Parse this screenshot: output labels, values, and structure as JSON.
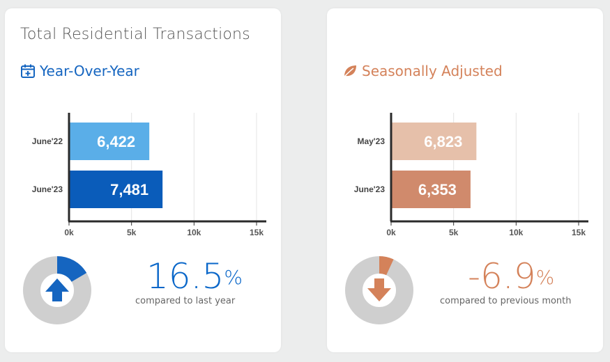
{
  "cards": [
    {
      "title": "Total Residential Transactions",
      "section_label": "Year-Over-Year",
      "section_icon": "calendar-plus-icon",
      "accent": "#1565c0",
      "metric": {
        "number": "16.5",
        "suffix": "%",
        "caption": "compared to last year",
        "direction": "up",
        "fraction": 0.165
      }
    },
    {
      "title": "",
      "section_label": "Seasonally Adjusted",
      "section_icon": "leaf-icon",
      "accent": "#d4825a",
      "metric": {
        "number": "-6.9",
        "suffix": "%",
        "caption": "compared to previous month",
        "direction": "down",
        "fraction": 0.069
      }
    }
  ],
  "chart_data": [
    {
      "type": "bar",
      "orientation": "horizontal",
      "categories": [
        "June'22",
        "June'23"
      ],
      "values": [
        6422,
        7481
      ],
      "value_labels": [
        "6,422",
        "7,481"
      ],
      "bar_colors": [
        "#5aaee8",
        "#0a5cba"
      ],
      "xlim": [
        0,
        15000
      ],
      "xticks": [
        "0k",
        "5k",
        "10k",
        "15k"
      ],
      "grid": true
    },
    {
      "type": "bar",
      "orientation": "horizontal",
      "categories": [
        "May'23",
        "June'23"
      ],
      "values": [
        6823,
        6353
      ],
      "value_labels": [
        "6,823",
        "6,353"
      ],
      "bar_colors": [
        "#e6c0aa",
        "#d08a6c"
      ],
      "xlim": [
        0,
        15000
      ],
      "xticks": [
        "0k",
        "5k",
        "10k",
        "15k"
      ],
      "grid": true
    }
  ]
}
